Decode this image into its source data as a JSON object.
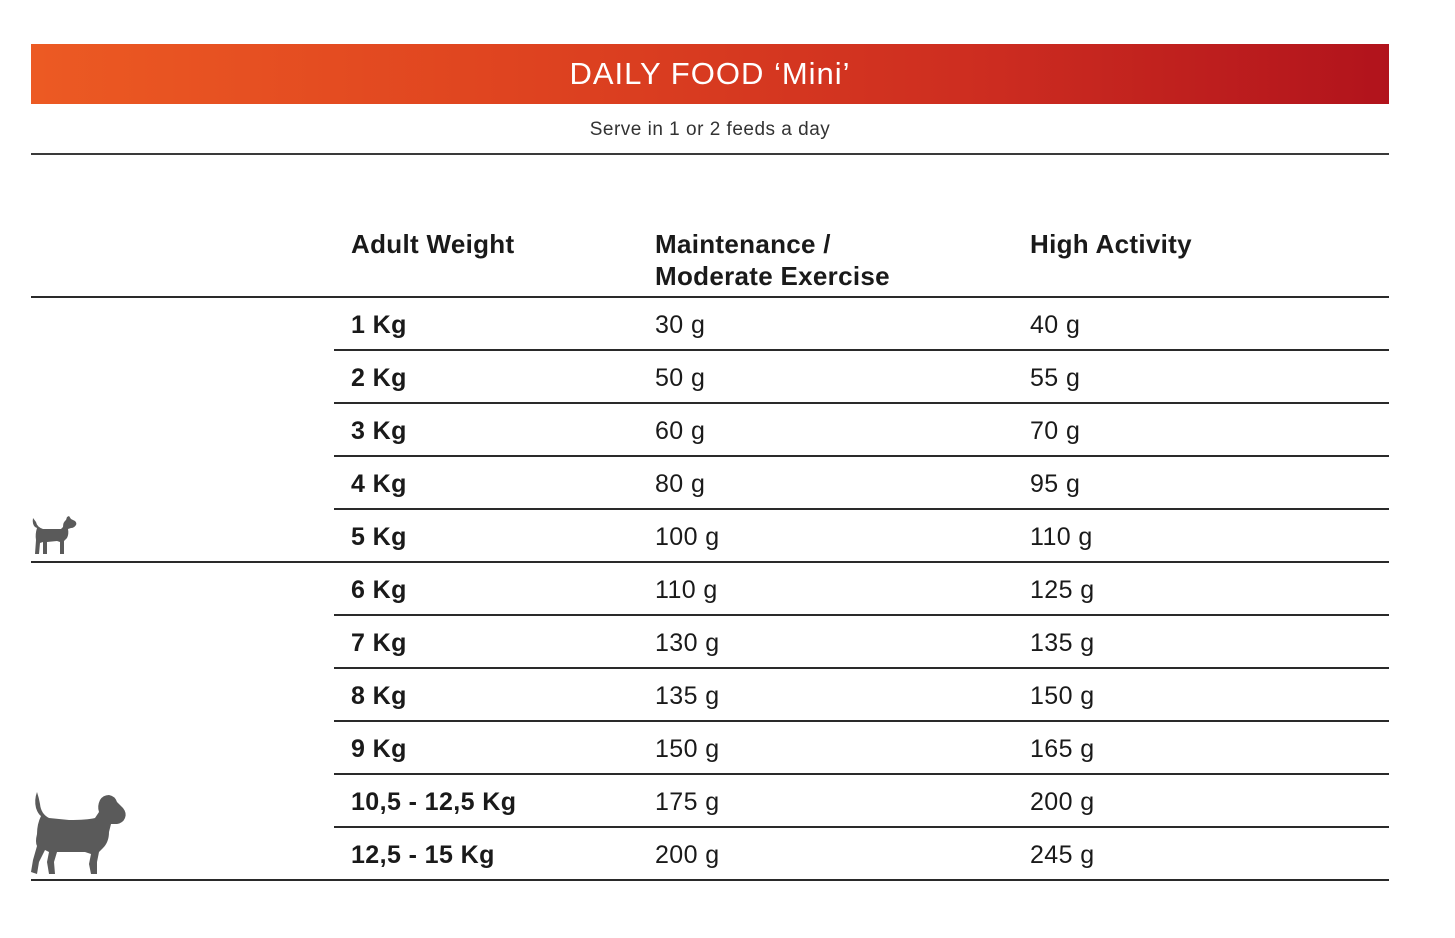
{
  "banner": {
    "title": "DAILY FOOD ‘Mini’"
  },
  "subtitle": "Serve in 1 or 2 feeds a day",
  "table": {
    "headers": {
      "weight": "Adult Weight",
      "maintenance_line1": "Maintenance /",
      "maintenance_line2": "Moderate Exercise",
      "high": "High Activity"
    },
    "rows": [
      {
        "weight": "1 Kg",
        "maintenance": "30 g",
        "high": "40 g"
      },
      {
        "weight": "2 Kg",
        "maintenance": "50 g",
        "high": "55 g"
      },
      {
        "weight": "3 Kg",
        "maintenance": "60 g",
        "high": "70 g"
      },
      {
        "weight": "4 Kg",
        "maintenance": "80 g",
        "high": "95 g"
      },
      {
        "weight": "5 Kg",
        "maintenance": "100 g",
        "high": "110 g"
      },
      {
        "weight": "6 Kg",
        "maintenance": "110 g",
        "high": "125 g"
      },
      {
        "weight": "7 Kg",
        "maintenance": "130 g",
        "high": "135 g"
      },
      {
        "weight": "8 Kg",
        "maintenance": "135 g",
        "high": "150 g"
      },
      {
        "weight": "9 Kg",
        "maintenance": "150 g",
        "high": "165 g"
      },
      {
        "weight": "10,5 - 12,5 Kg",
        "maintenance": "175 g",
        "high": "200 g"
      },
      {
        "weight": "12,5 - 15 Kg",
        "maintenance": "200 g",
        "high": "245 g"
      }
    ]
  },
  "icons": {
    "small_dog": "small-dog-icon",
    "medium_dog": "medium-dog-icon"
  },
  "colors": {
    "banner_start": "#ec5a23",
    "banner_end": "#b1131c",
    "icon_gray": "#5a5a5a"
  }
}
